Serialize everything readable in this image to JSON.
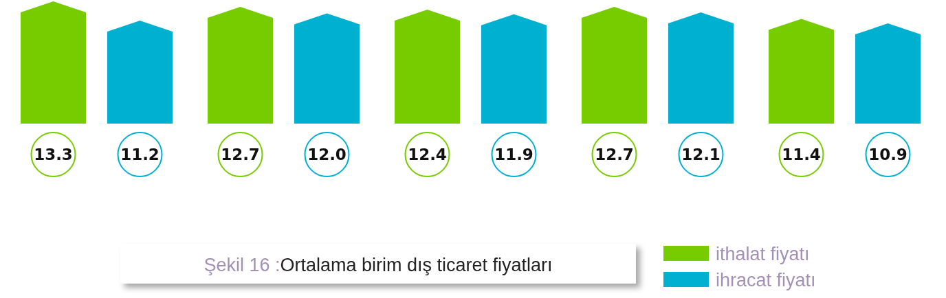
{
  "chart_data": {
    "type": "bar",
    "title": "Şekil 16 :Ortalama birim dış ticaret fiyatları",
    "categories": [
      null,
      null,
      null,
      null,
      null
    ],
    "series": [
      {
        "name": "ithalat fiyatı",
        "color": "#77cc00",
        "values": [
          13.3,
          12.7,
          12.4,
          12.7,
          11.4
        ],
        "value_labels": [
          "13.3",
          "12.7",
          "12.4",
          "12.7",
          "11.4"
        ]
      },
      {
        "name": "ihracat fiyatı",
        "color": "#00b0d0",
        "values": [
          11.2,
          12.0,
          11.9,
          12.1,
          10.9
        ],
        "value_labels": [
          "11.2",
          "12.0",
          "11.9",
          "12.1",
          "10.9"
        ]
      }
    ],
    "legend": "bottom right"
  }
}
